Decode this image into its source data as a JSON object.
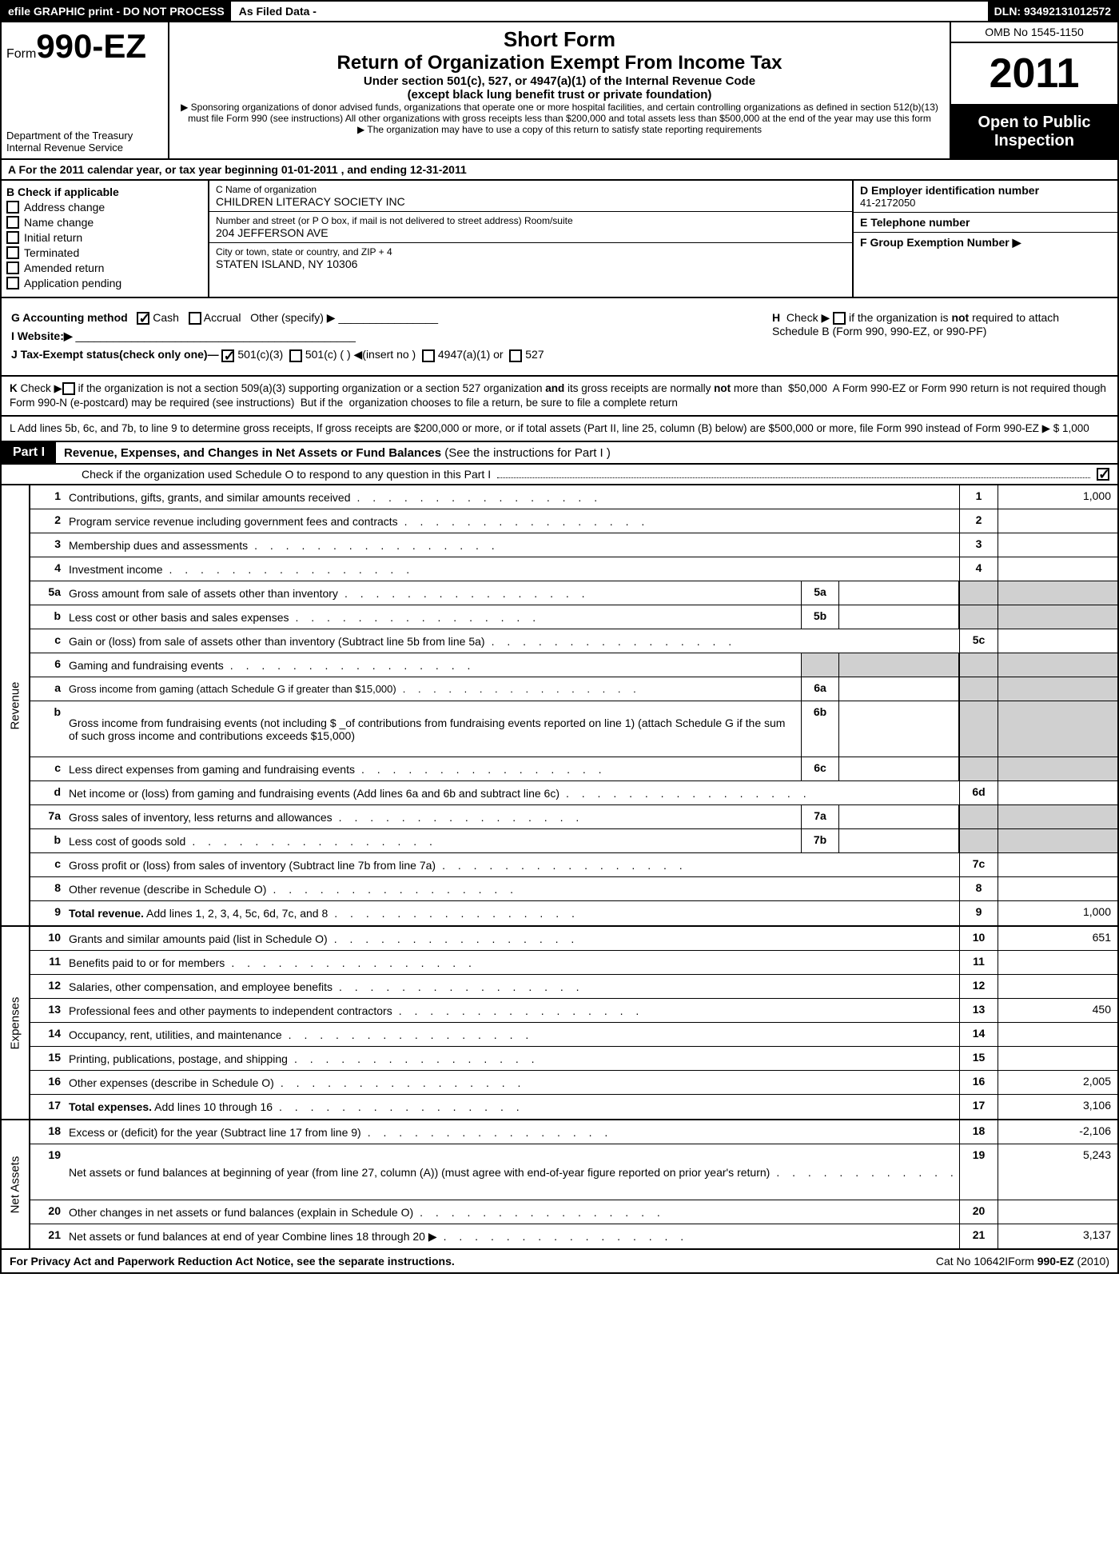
{
  "header_bar": {
    "efile": "efile GRAPHIC print - DO NOT PROCESS",
    "as_filed": "As Filed Data -",
    "dln": "DLN: 93492131012572"
  },
  "form_header": {
    "form_prefix": "Form",
    "form_no": "990-EZ",
    "dept1": "Department of the Treasury",
    "dept2": "Internal Revenue Service",
    "short": "Short Form",
    "title": "Return of Organization Exempt From Income Tax",
    "sub": "Under section 501(c), 527, or 4947(a)(1) of the Internal Revenue Code",
    "sub2": "(except black lung benefit trust or private foundation)",
    "note1": "▶ Sponsoring organizations of donor advised funds, organizations that operate one or more hospital facilities, and certain controlling organizations as defined in section 512(b)(13) must file Form 990 (see instructions) All other organizations with gross receipts less than $200,000 and total assets less than $500,000 at the end of the year may use this form",
    "note2": "▶ The organization may have to use a copy of this return to satisfy state reporting requirements",
    "omb": "OMB No 1545-1150",
    "year": "2011",
    "open": "Open to Public Inspection"
  },
  "row_a": "A  For the 2011 calendar year, or tax year beginning 01-01-2011             , and ending 12-31-2011",
  "col_b": {
    "title": "B  Check if applicable",
    "items": [
      "Address change",
      "Name change",
      "Initial return",
      "Terminated",
      "Amended return",
      "Application pending"
    ]
  },
  "col_c": {
    "name_lbl": "C Name of organization",
    "name": "CHILDREN LITERACY SOCIETY INC",
    "addr_lbl": "Number and street (or P O box, if mail is not delivered to street address) Room/suite",
    "addr": "204 JEFFERSON AVE",
    "city_lbl": "City or town, state or country, and ZIP + 4",
    "city": "STATEN ISLAND, NY  10306"
  },
  "col_d": {
    "ein_lbl": "D Employer identification number",
    "ein": "41-2172050",
    "tel_lbl": "E Telephone number",
    "tel": "",
    "grp_lbl": "F Group Exemption Number    ▶"
  },
  "mid": {
    "g": "G Accounting method",
    "g_cash": "Cash",
    "g_accrual": "Accrual",
    "g_other": "Other (specify) ▶",
    "h": "H   Check ▶        if the organization is not required to attach Schedule B (Form 990, 990-EZ, or 990-PF)",
    "i": "I Website:▶",
    "j": "J Tax-Exempt status(check only one)—",
    "j1": "501(c)(3)",
    "j2": "501(c) (   ) ◀(insert no )",
    "j3": "4947(a)(1) or",
    "j4": "527"
  },
  "note_k": "K Check ▶      if the organization is not a section 509(a)(3) supporting organization or a section 527 organization and its gross receipts are normally not more than   $50,000  A Form 990-EZ or Form 990 return is not required though Form 990-N (e-postcard) may be required (see instructions)  But if the  organization chooses to file a return, be sure to file a complete return",
  "note_l": "L Add lines 5b, 6c, and 7b, to line 9 to determine gross receipts, If gross receipts are $200,000 or more, or if total assets (Part II, line 25, column (B) below) are $500,000 or more,   file Form 990 instead of Form 990-EZ                           ▶ $                      1,000",
  "part1": {
    "label": "Part I",
    "title": "Revenue, Expenses, and Changes in Net Assets or Fund Balances",
    "title_sub": "(See the instructions for Part I )",
    "check_line": "Check if the organization used Schedule O to respond to any question in this Part I"
  },
  "sections": [
    {
      "label": "Revenue",
      "rows": [
        {
          "n": "1",
          "d": "Contributions, gifts, grants, and similar amounts received",
          "en": "1",
          "ev": "1,000"
        },
        {
          "n": "2",
          "d": "Program service revenue including government fees and contracts",
          "en": "2",
          "ev": ""
        },
        {
          "n": "3",
          "d": "Membership dues and assessments",
          "en": "3",
          "ev": ""
        },
        {
          "n": "4",
          "d": "Investment income",
          "en": "4",
          "ev": ""
        },
        {
          "n": "5a",
          "d": "Gross amount from sale of assets other than inventory",
          "mn": "5a",
          "mv": "",
          "grey_end": true
        },
        {
          "n": "b",
          "d": "Less  cost or other basis and sales expenses",
          "mn": "5b",
          "mv": "",
          "grey_end": true
        },
        {
          "n": "c",
          "d": "Gain or (loss) from sale of assets other than inventory (Subtract line 5b from line 5a)",
          "en": "5c",
          "ev": ""
        },
        {
          "n": "6",
          "d": "Gaming and fundraising events",
          "grey_end": true,
          "grey_mid": true,
          "no_cells": true
        },
        {
          "n": "a",
          "d": "Gross income from gaming (attach Schedule G if greater than $15,000)",
          "mn": "6a",
          "mv": "",
          "grey_end": true,
          "sub": true
        },
        {
          "n": "b",
          "d": "Gross income from fundraising events (not including $ _of contributions from fundraising events reported on line 1) (attach Schedule G if the sum of such gross income and contributions exceeds $15,000)",
          "mn": "6b",
          "mv": "",
          "grey_end": true,
          "tall": true
        },
        {
          "n": "c",
          "d": "Less  direct expenses from gaming and fundraising events",
          "mn": "6c",
          "mv": "",
          "grey_end": true
        },
        {
          "n": "d",
          "d": "Net income or (loss) from gaming and fundraising events (Add lines 6a and 6b and subtract line 6c)",
          "en": "6d",
          "ev": ""
        },
        {
          "n": "7a",
          "d": "Gross sales of inventory, less returns and allowances",
          "mn": "7a",
          "mv": "",
          "grey_end": true
        },
        {
          "n": "b",
          "d": "Less  cost of goods sold",
          "mn": "7b",
          "mv": "",
          "grey_end": true
        },
        {
          "n": "c",
          "d": "Gross profit or (loss) from sales of inventory (Subtract line 7b from line 7a)",
          "en": "7c",
          "ev": ""
        },
        {
          "n": "8",
          "d": "Other revenue (describe in Schedule O)",
          "en": "8",
          "ev": ""
        },
        {
          "n": "9",
          "d": "Total revenue. Add lines 1, 2, 3, 4, 5c, 6d, 7c, and 8",
          "en": "9",
          "ev": "1,000",
          "bold": true
        }
      ]
    },
    {
      "label": "Expenses",
      "rows": [
        {
          "n": "10",
          "d": "Grants and similar amounts paid (list in Schedule O)",
          "en": "10",
          "ev": "651"
        },
        {
          "n": "11",
          "d": "Benefits paid to or for members",
          "en": "11",
          "ev": ""
        },
        {
          "n": "12",
          "d": "Salaries, other compensation, and employee benefits",
          "en": "12",
          "ev": ""
        },
        {
          "n": "13",
          "d": "Professional fees and other payments to independent contractors",
          "en": "13",
          "ev": "450"
        },
        {
          "n": "14",
          "d": "Occupancy, rent, utilities, and maintenance",
          "en": "14",
          "ev": ""
        },
        {
          "n": "15",
          "d": "Printing, publications, postage, and shipping",
          "en": "15",
          "ev": ""
        },
        {
          "n": "16",
          "d": "Other expenses (describe in Schedule O)",
          "en": "16",
          "ev": "2,005"
        },
        {
          "n": "17",
          "d": "Total expenses. Add lines 10 through 16",
          "en": "17",
          "ev": "3,106",
          "bold": true
        }
      ]
    },
    {
      "label": "Net Assets",
      "rows": [
        {
          "n": "18",
          "d": "Excess or (deficit) for the year (Subtract line 17 from line 9)",
          "en": "18",
          "ev": "-2,106"
        },
        {
          "n": "19",
          "d": "Net assets or fund balances at beginning of year (from line 27, column (A)) (must agree with end-of-year figure reported on prior year's return)",
          "en": "19",
          "ev": "5,243",
          "tall": true
        },
        {
          "n": "20",
          "d": "Other changes in net assets or fund balances (explain in Schedule O)",
          "en": "20",
          "ev": ""
        },
        {
          "n": "21",
          "d": "Net assets or fund balances at end of year  Combine lines 18 through 20           ▶",
          "en": "21",
          "ev": "3,137"
        }
      ]
    }
  ],
  "footer": {
    "l": "For Privacy Act and Paperwork Reduction Act Notice, see the separate instructions.",
    "c": "Cat No 10642I",
    "r": "Form 990-EZ (2010)"
  }
}
